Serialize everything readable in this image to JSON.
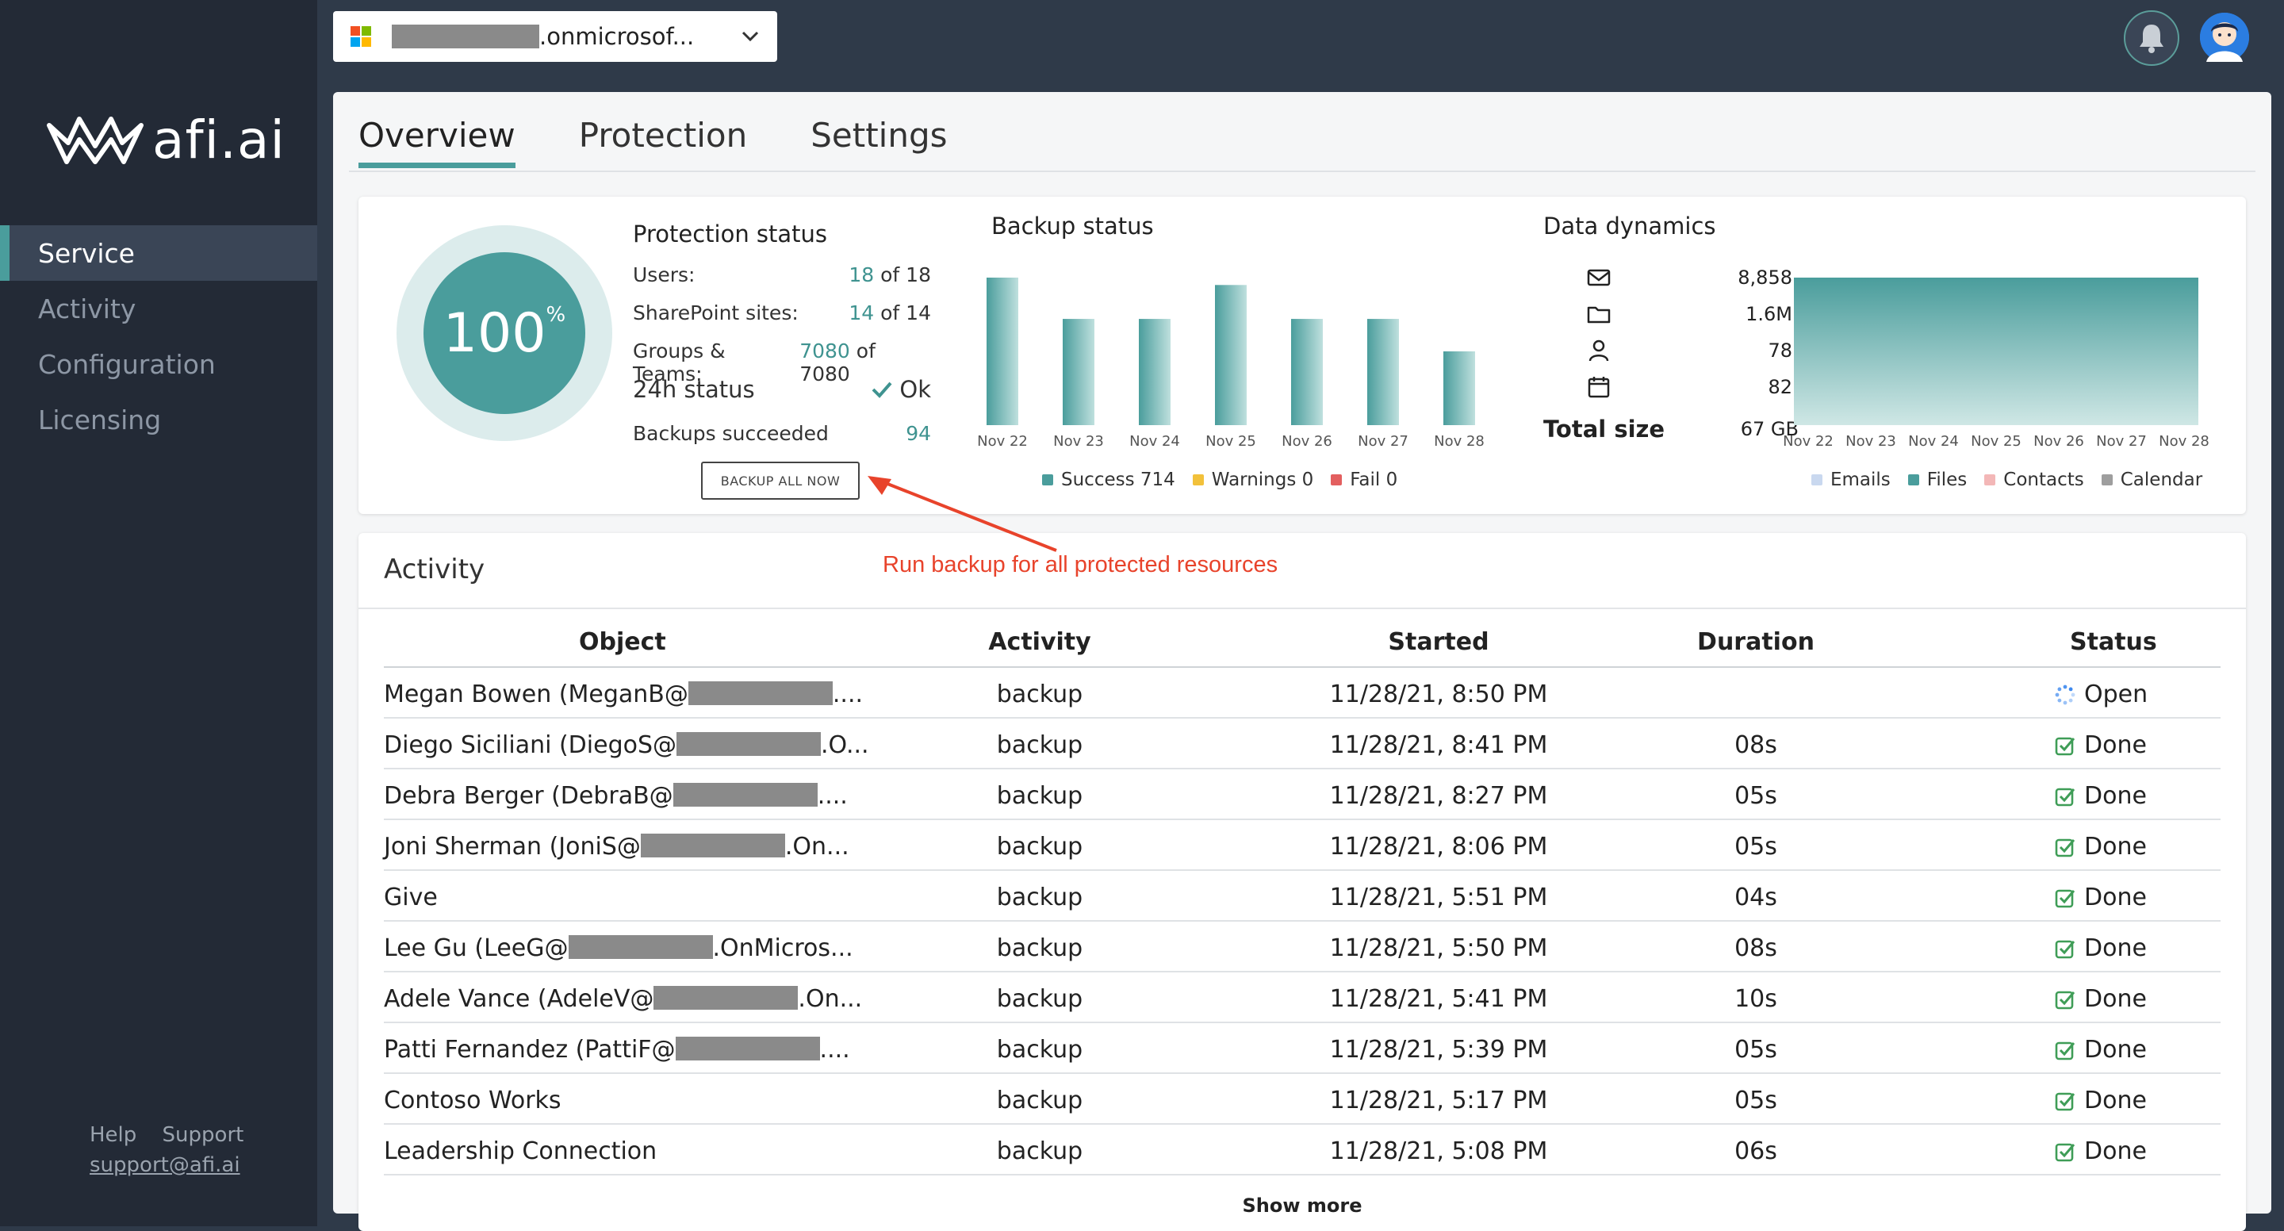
{
  "sidebar": {
    "brand": "afi.ai",
    "items": [
      {
        "label": "Service"
      },
      {
        "label": "Activity"
      },
      {
        "label": "Configuration"
      },
      {
        "label": "Licensing"
      }
    ],
    "footer": {
      "help": "Help",
      "support": "Support",
      "email": "support@afi.ai"
    }
  },
  "topbar": {
    "tenant_name": ".onmicrosof...",
    "icons": [
      "microsoft-logo",
      "chevron-down-icon",
      "bell-icon",
      "avatar"
    ]
  },
  "tabs": [
    {
      "label": "Overview"
    },
    {
      "label": "Protection"
    },
    {
      "label": "Settings"
    }
  ],
  "protection": {
    "percent": "100",
    "percent_sign": "%",
    "title": "Protection status",
    "users_label": "Users:",
    "users_value": "18",
    "users_total": "of 18",
    "sp_label": "SharePoint sites:",
    "sp_value": "14",
    "sp_total": "of 14",
    "groups_label": "Groups & Teams:",
    "groups_value": "7080",
    "groups_total": "of 7080",
    "status24_label": "24h status",
    "status24_value": "Ok",
    "backups_label": "Backups succeeded",
    "backups_value": "94",
    "backup_button": "BACKUP ALL NOW"
  },
  "backup_status": {
    "title": "Backup status",
    "legend": {
      "success": "Success 714",
      "warnings": "Warnings 0",
      "fail": "Fail 0"
    }
  },
  "data_dynamics": {
    "title": "Data dynamics",
    "rows": [
      {
        "icon": "mail-icon",
        "value": "8,858"
      },
      {
        "icon": "folder-icon",
        "value": "1.6M"
      },
      {
        "icon": "person-icon",
        "value": "78"
      },
      {
        "icon": "calendar-icon",
        "value": "82"
      }
    ],
    "total_label": "Total size",
    "total_value": "67 GB",
    "legend": {
      "emails": "Emails",
      "files": "Files",
      "contacts": "Contacts",
      "calendar": "Calendar"
    }
  },
  "chart_data": [
    {
      "type": "bar",
      "title": "Backup status",
      "categories": [
        "Nov 22",
        "Nov 23",
        "Nov 24",
        "Nov 25",
        "Nov 26",
        "Nov 27",
        "Nov 28"
      ],
      "values": [
        100,
        72,
        72,
        95,
        72,
        72,
        50
      ],
      "colors": {
        "success": "#4a9d9c",
        "warnings": "#f2c13b",
        "fail": "#e35f5f"
      }
    },
    {
      "type": "area",
      "title": "Data dynamics",
      "categories": [
        "Nov 22",
        "Nov 23",
        "Nov 24",
        "Nov 25",
        "Nov 26",
        "Nov 27",
        "Nov 28"
      ],
      "values": [
        100,
        100,
        100,
        100,
        100,
        100,
        100
      ],
      "colors": {
        "emails": "#c9d8ef",
        "files": "#4a9d9c",
        "contacts": "#f3b7b7",
        "calendar": "#9e9e9e"
      }
    }
  ],
  "annotation": {
    "text": "Run backup for all protected resources"
  },
  "activity": {
    "title": "Activity",
    "columns": [
      "Object",
      "Activity",
      "Started",
      "Duration",
      "Status"
    ],
    "rows": [
      {
        "obj_pre": "Megan Bowen (MeganB@",
        "obj_post": "....",
        "activity": "backup",
        "started": "11/28/21, 8:50 PM",
        "duration": "",
        "status": "Open"
      },
      {
        "obj_pre": "Diego Siciliani (DiegoS@",
        "obj_post": ".O...",
        "activity": "backup",
        "started": "11/28/21, 8:41 PM",
        "duration": "08s",
        "status": "Done"
      },
      {
        "obj_pre": "Debra Berger (DebraB@",
        "obj_post": "....",
        "activity": "backup",
        "started": "11/28/21, 8:27 PM",
        "duration": "05s",
        "status": "Done"
      },
      {
        "obj_pre": "Joni Sherman (JoniS@",
        "obj_post": ".On...",
        "activity": "backup",
        "started": "11/28/21, 8:06 PM",
        "duration": "05s",
        "status": "Done"
      },
      {
        "obj_pre": "Give",
        "obj_post": "",
        "activity": "backup",
        "started": "11/28/21, 5:51 PM",
        "duration": "04s",
        "status": "Done"
      },
      {
        "obj_pre": "Lee Gu (LeeG@",
        "obj_post": ".OnMicros...",
        "activity": "backup",
        "started": "11/28/21, 5:50 PM",
        "duration": "08s",
        "status": "Done"
      },
      {
        "obj_pre": "Adele Vance (AdeleV@",
        "obj_post": ".On...",
        "activity": "backup",
        "started": "11/28/21, 5:41 PM",
        "duration": "10s",
        "status": "Done"
      },
      {
        "obj_pre": "Patti Fernandez (PattiF@",
        "obj_post": "....",
        "activity": "backup",
        "started": "11/28/21, 5:39 PM",
        "duration": "05s",
        "status": "Done"
      },
      {
        "obj_pre": "Contoso Works",
        "obj_post": "",
        "activity": "backup",
        "started": "11/28/21, 5:17 PM",
        "duration": "05s",
        "status": "Done"
      },
      {
        "obj_pre": "Leadership Connection",
        "obj_post": "",
        "activity": "backup",
        "started": "11/28/21, 5:08 PM",
        "duration": "06s",
        "status": "Done"
      }
    ],
    "show_more": "Show more"
  }
}
